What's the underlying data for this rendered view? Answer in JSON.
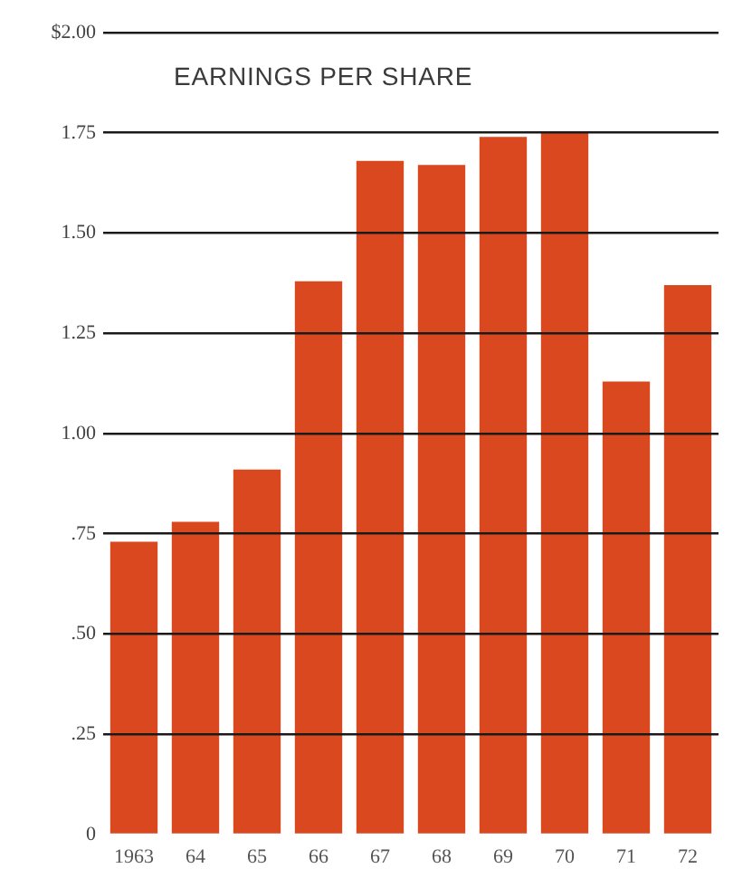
{
  "chart_data": {
    "type": "bar",
    "title": "EARNINGS PER SHARE",
    "categories": [
      "1963",
      "64",
      "65",
      "66",
      "67",
      "68",
      "69",
      "70",
      "71",
      "72"
    ],
    "values": [
      0.73,
      0.78,
      0.91,
      1.38,
      1.68,
      1.67,
      1.74,
      1.75,
      1.13,
      1.37
    ],
    "color": "#d9481e",
    "ylim": [
      0,
      2
    ],
    "yticks": [
      0,
      {
        "value": 0.25,
        "label": ".25"
      },
      {
        "value": 0.5,
        "label": ".50"
      },
      {
        "value": 0.75,
        "label": ".75"
      },
      {
        "value": 1,
        "label": "1.00"
      },
      1.25,
      {
        "value": 1.5,
        "label": "1.50"
      },
      1.75,
      {
        "value": 2,
        "label": "$2.00"
      }
    ],
    "grid": "y"
  }
}
